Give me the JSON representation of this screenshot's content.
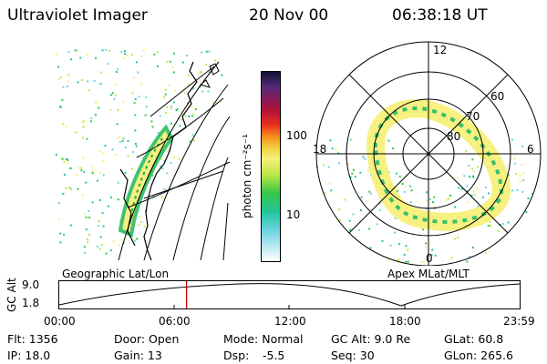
{
  "header": {
    "title": "Ultraviolet Imager",
    "date": "20 Nov 00",
    "time": "06:38:18 UT"
  },
  "colorbar": {
    "unit": "photon cm⁻²s⁻¹",
    "ticks": [
      "100",
      "10"
    ],
    "scale": "log"
  },
  "polar": {
    "mlt_labels": [
      "12",
      "18",
      "6",
      "0"
    ],
    "lat_labels": [
      "60",
      "70",
      "80"
    ]
  },
  "captions": {
    "geo": "Geographic Lat/Lon",
    "apex": "Apex MLat/MLT"
  },
  "altitude_plot": {
    "ylabel": "GC Alt",
    "yticks": [
      "9.0",
      "1.8"
    ],
    "xticks": [
      "00:00",
      "06:00",
      "12:00",
      "18:00",
      "23:59"
    ],
    "current_marker": "06:38",
    "marker_color": "#cc0000"
  },
  "info": {
    "flt": "Flt: 1356",
    "ip": "IP: 18.0",
    "door": "Door: Open",
    "gain": "Gain: 13",
    "mode": "Mode: Normal",
    "dsp_label": "Dsp:",
    "dsp_value": "-5.5",
    "gcalt": "GC Alt: 9.0 Re",
    "seq": "Seq: 30",
    "glat": "GLat:  60.8",
    "glon": "GLon: 265.6"
  }
}
